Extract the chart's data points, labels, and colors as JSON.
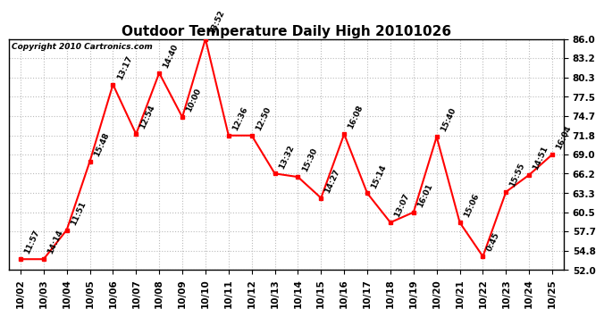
{
  "title": "Outdoor Temperature Daily High 20101026",
  "copyright": "Copyright 2010 Cartronics.com",
  "x_labels": [
    "10/02",
    "10/03",
    "10/04",
    "10/05",
    "10/06",
    "10/07",
    "10/08",
    "10/09",
    "10/10",
    "10/11",
    "10/12",
    "10/13",
    "10/14",
    "10/15",
    "10/16",
    "10/17",
    "10/18",
    "10/19",
    "10/20",
    "10/21",
    "10/22",
    "10/23",
    "10/24",
    "10/25"
  ],
  "times": [
    "11:57",
    "14:14",
    "11:51",
    "15:48",
    "13:17",
    "12:54",
    "14:40",
    "10:00",
    "13:52",
    "12:36",
    "12:50",
    "13:32",
    "15:30",
    "14:27",
    "16:08",
    "15:14",
    "13:07",
    "16:01",
    "15:40",
    "15:06",
    "0:45",
    "15:55",
    "14:51",
    "16:04"
  ],
  "values": [
    53.6,
    53.6,
    57.9,
    68.0,
    79.3,
    72.0,
    81.0,
    74.5,
    86.0,
    71.8,
    71.8,
    66.2,
    65.7,
    62.6,
    72.0,
    63.3,
    59.0,
    60.5,
    71.6,
    59.0,
    54.0,
    63.5,
    66.0,
    69.0
  ],
  "ylim": [
    52.0,
    86.0
  ],
  "yticks": [
    52.0,
    54.8,
    57.7,
    60.5,
    63.3,
    66.2,
    69.0,
    71.8,
    74.7,
    77.5,
    80.3,
    83.2,
    86.0
  ],
  "line_color": "red",
  "marker_color": "red",
  "bg_color": "white",
  "grid_color": "#bbbbbb",
  "title_fontsize": 11,
  "tick_fontsize": 7.5,
  "time_fontsize": 6.5,
  "copyright_fontsize": 6.5
}
